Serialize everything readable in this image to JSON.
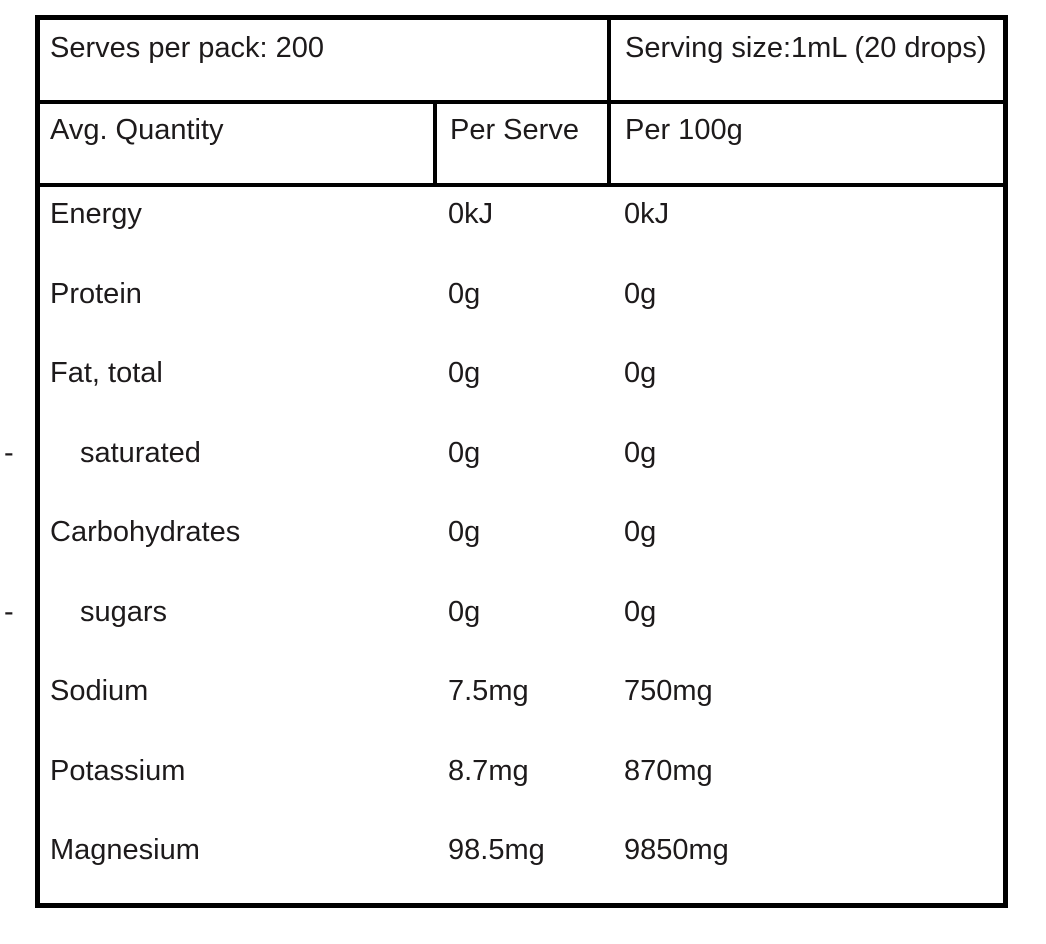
{
  "colors": {
    "border": "#000000",
    "text": "#1d1a1b",
    "background": "#ffffff"
  },
  "panel": {
    "serves_per_pack": "Serves per pack: 200",
    "serving_size": "Serving size:1mL (20 drops)"
  },
  "columns": {
    "quantity": "Avg. Quantity",
    "per_serve": "Per Serve",
    "per_100g": "Per 100g"
  },
  "rows": [
    {
      "label": "Energy",
      "per_serve": "0kJ",
      "per_100g": "0kJ",
      "indent": false,
      "marker": ""
    },
    {
      "label": "Protein",
      "per_serve": "0g",
      "per_100g": "0g",
      "indent": false,
      "marker": ""
    },
    {
      "label": "Fat, total",
      "per_serve": "0g",
      "per_100g": "0g",
      "indent": false,
      "marker": ""
    },
    {
      "label": "saturated",
      "per_serve": "0g",
      "per_100g": "0g",
      "indent": true,
      "marker": "-"
    },
    {
      "label": "Carbohydrates",
      "per_serve": "0g",
      "per_100g": "0g",
      "indent": false,
      "marker": ""
    },
    {
      "label": "sugars",
      "per_serve": "0g",
      "per_100g": "0g",
      "indent": true,
      "marker": "-"
    },
    {
      "label": "Sodium",
      "per_serve": "7.5mg",
      "per_100g": "750mg",
      "indent": false,
      "marker": ""
    },
    {
      "label": "Potassium",
      "per_serve": "8.7mg",
      "per_100g": "870mg",
      "indent": false,
      "marker": ""
    },
    {
      "label": "Magnesium",
      "per_serve": "98.5mg",
      "per_100g": "9850mg",
      "indent": false,
      "marker": ""
    }
  ]
}
